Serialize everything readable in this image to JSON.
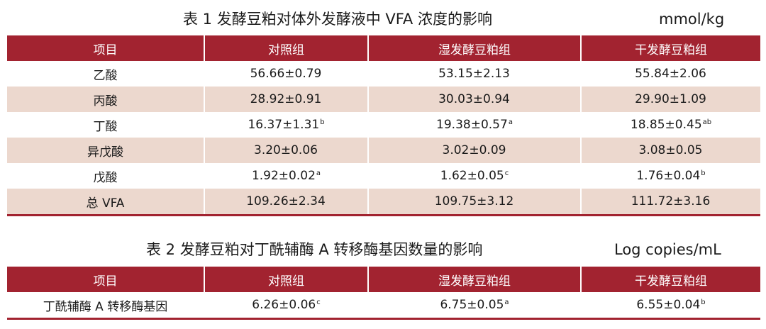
{
  "table1": {
    "title": "表 1  发酵豆粕对体外发酵液中 VFA 浓度的影响",
    "unit": "mmol/kg",
    "headers": [
      "项目",
      "对照组",
      "湿发酵豆粕组",
      "干发酵豆粕组"
    ],
    "rows": [
      {
        "item": "乙酸",
        "cells": [
          {
            "v": "56.66±0.79",
            "s": ""
          },
          {
            "v": "53.15±2.13",
            "s": ""
          },
          {
            "v": "55.84±2.06",
            "s": ""
          }
        ]
      },
      {
        "item": "丙酸",
        "cells": [
          {
            "v": "28.92±0.91",
            "s": ""
          },
          {
            "v": "30.03±0.94",
            "s": ""
          },
          {
            "v": "29.90±1.09",
            "s": ""
          }
        ]
      },
      {
        "item": "丁酸",
        "cells": [
          {
            "v": "16.37±1.31",
            "s": "b"
          },
          {
            "v": "19.38±0.57",
            "s": "a"
          },
          {
            "v": "18.85±0.45",
            "s": "ab"
          }
        ]
      },
      {
        "item": "异戊酸",
        "cells": [
          {
            "v": "3.20±0.06",
            "s": ""
          },
          {
            "v": "3.02±0.09",
            "s": ""
          },
          {
            "v": "3.08±0.05",
            "s": ""
          }
        ]
      },
      {
        "item": "戊酸",
        "cells": [
          {
            "v": "1.92±0.02",
            "s": "a"
          },
          {
            "v": "1.62±0.05",
            "s": "c"
          },
          {
            "v": "1.76±0.04",
            "s": "b"
          }
        ]
      },
      {
        "item": "总 VFA",
        "cells": [
          {
            "v": "109.26±2.34",
            "s": ""
          },
          {
            "v": "109.75±3.12",
            "s": ""
          },
          {
            "v": "111.72±3.16",
            "s": ""
          }
        ]
      }
    ]
  },
  "table2": {
    "title": "表 2  发酵豆粕对丁酰辅酶 A 转移酶基因数量的影响",
    "unit": "Log copies/mL",
    "headers": [
      "项目",
      "对照组",
      "湿发酵豆粕组",
      "干发酵豆粕组"
    ],
    "rows": [
      {
        "item": "丁酰辅酶 A 转移酶基因",
        "cells": [
          {
            "v": "6.26±0.06",
            "s": "c"
          },
          {
            "v": "6.75±0.05",
            "s": "a"
          },
          {
            "v": "6.55±0.04",
            "s": "b"
          }
        ]
      }
    ]
  },
  "colors": {
    "header_bg": "#a22330",
    "stripe_bg": "#ecd8ce"
  }
}
